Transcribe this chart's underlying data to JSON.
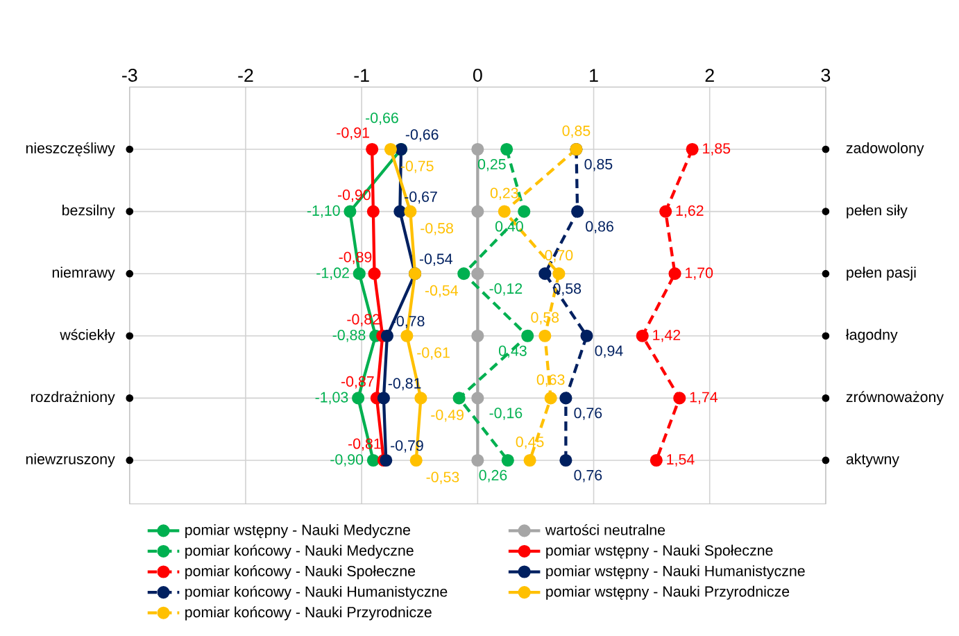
{
  "chart_data": {
    "type": "line",
    "orientation": "horizontal",
    "categories": [
      "nieszczęśliwy",
      "bezsilny",
      "niemrawy",
      "wściekły",
      "rozdrażniony",
      "niewzruszony"
    ],
    "xlim": [
      -3,
      3
    ],
    "xticks": [
      -3,
      -2,
      -1,
      0,
      1,
      2,
      3
    ],
    "grid": true,
    "legend": "bottom",
    "marker": "circle",
    "annotations": [
      "zadowolony",
      "pełen siły",
      "pełen pasji",
      "łagodny",
      "zrównoważony",
      "aktywny"
    ],
    "series": [
      {
        "name": "pomiar wstępny - Nauki Medyczne",
        "color": "#00b050",
        "line_style": "solid",
        "values": [
          -0.66,
          -1.1,
          -1.02,
          -0.88,
          -1.03,
          -0.9
        ],
        "value_labels": [
          "-0,66",
          "-1,10",
          "-1,02",
          "-0,88",
          "-1,03",
          "-0,90"
        ]
      },
      {
        "name": "wartości neutralne",
        "color": "#a6a6a6",
        "line_style": "solid",
        "values": [
          0,
          0,
          0,
          0,
          0,
          0
        ]
      },
      {
        "name": "pomiar końcowy - Nauki Medyczne",
        "color": "#00b050",
        "line_style": "dashed",
        "values": [
          0.25,
          0.4,
          -0.12,
          0.43,
          -0.16,
          0.26
        ],
        "value_labels": [
          "0,25",
          "0,40",
          "-0,12",
          "0,43",
          "-0,16",
          "0,26"
        ]
      },
      {
        "name": "pomiar wstępny - Nauki Społeczne",
        "color": "#ff0000",
        "line_style": "solid",
        "values": [
          -0.91,
          -0.9,
          -0.89,
          -0.82,
          -0.87,
          -0.81
        ],
        "value_labels": [
          "-0,91",
          "-0,90",
          "-0,89",
          "-0,82",
          "-0,87",
          "-0,81"
        ]
      },
      {
        "name": "pomiar końcowy - Nauki Społeczne",
        "color": "#ff0000",
        "line_style": "dashed",
        "values": [
          1.85,
          1.62,
          1.7,
          1.42,
          1.74,
          1.54
        ],
        "value_labels": [
          "1,85",
          "1,62",
          "1,70",
          "1,42",
          "1,74",
          "1,54"
        ]
      },
      {
        "name": "pomiar wstępny - Nauki Humanistyczne",
        "color": "#002060",
        "line_style": "solid",
        "values": [
          -0.66,
          -0.67,
          -0.54,
          -0.78,
          -0.81,
          -0.79
        ],
        "value_labels": [
          "-0,66",
          "-0,67",
          "-0,54",
          "-0,78",
          "-0,81",
          "-0,79"
        ]
      },
      {
        "name": "pomiar końcowy - Nauki Humanistyczne",
        "color": "#002060",
        "line_style": "dashed",
        "values": [
          0.85,
          0.86,
          0.58,
          0.94,
          0.76,
          0.76
        ],
        "value_labels": [
          "0,85",
          "0,86",
          "0,58",
          "0,94",
          "0,76",
          "0,76"
        ]
      },
      {
        "name": "pomiar wstępny - Nauki Przyrodnicze",
        "color": "#ffc000",
        "line_style": "solid",
        "values": [
          -0.75,
          -0.58,
          -0.54,
          -0.61,
          -0.49,
          -0.53
        ],
        "value_labels": [
          "-0,75",
          "-0,58",
          "-0,54",
          "-0,61",
          "-0,49",
          "-0,53"
        ]
      },
      {
        "name": "pomiar końcowy - Nauki Przyrodnicze",
        "color": "#ffc000",
        "line_style": "dashed",
        "values": [
          0.85,
          0.23,
          0.7,
          0.58,
          0.63,
          0.45
        ],
        "value_labels": [
          "0,85",
          "0,23",
          "0,70",
          "0,58",
          "0,63",
          "0,45"
        ]
      },
      {
        "type": "scatter",
        "color": "#000000",
        "values": [
          -3,
          -3,
          -3,
          -3,
          -3,
          -3
        ]
      },
      {
        "type": "scatter",
        "color": "#000000",
        "values": [
          3,
          3,
          3,
          3,
          3,
          3
        ]
      }
    ]
  }
}
